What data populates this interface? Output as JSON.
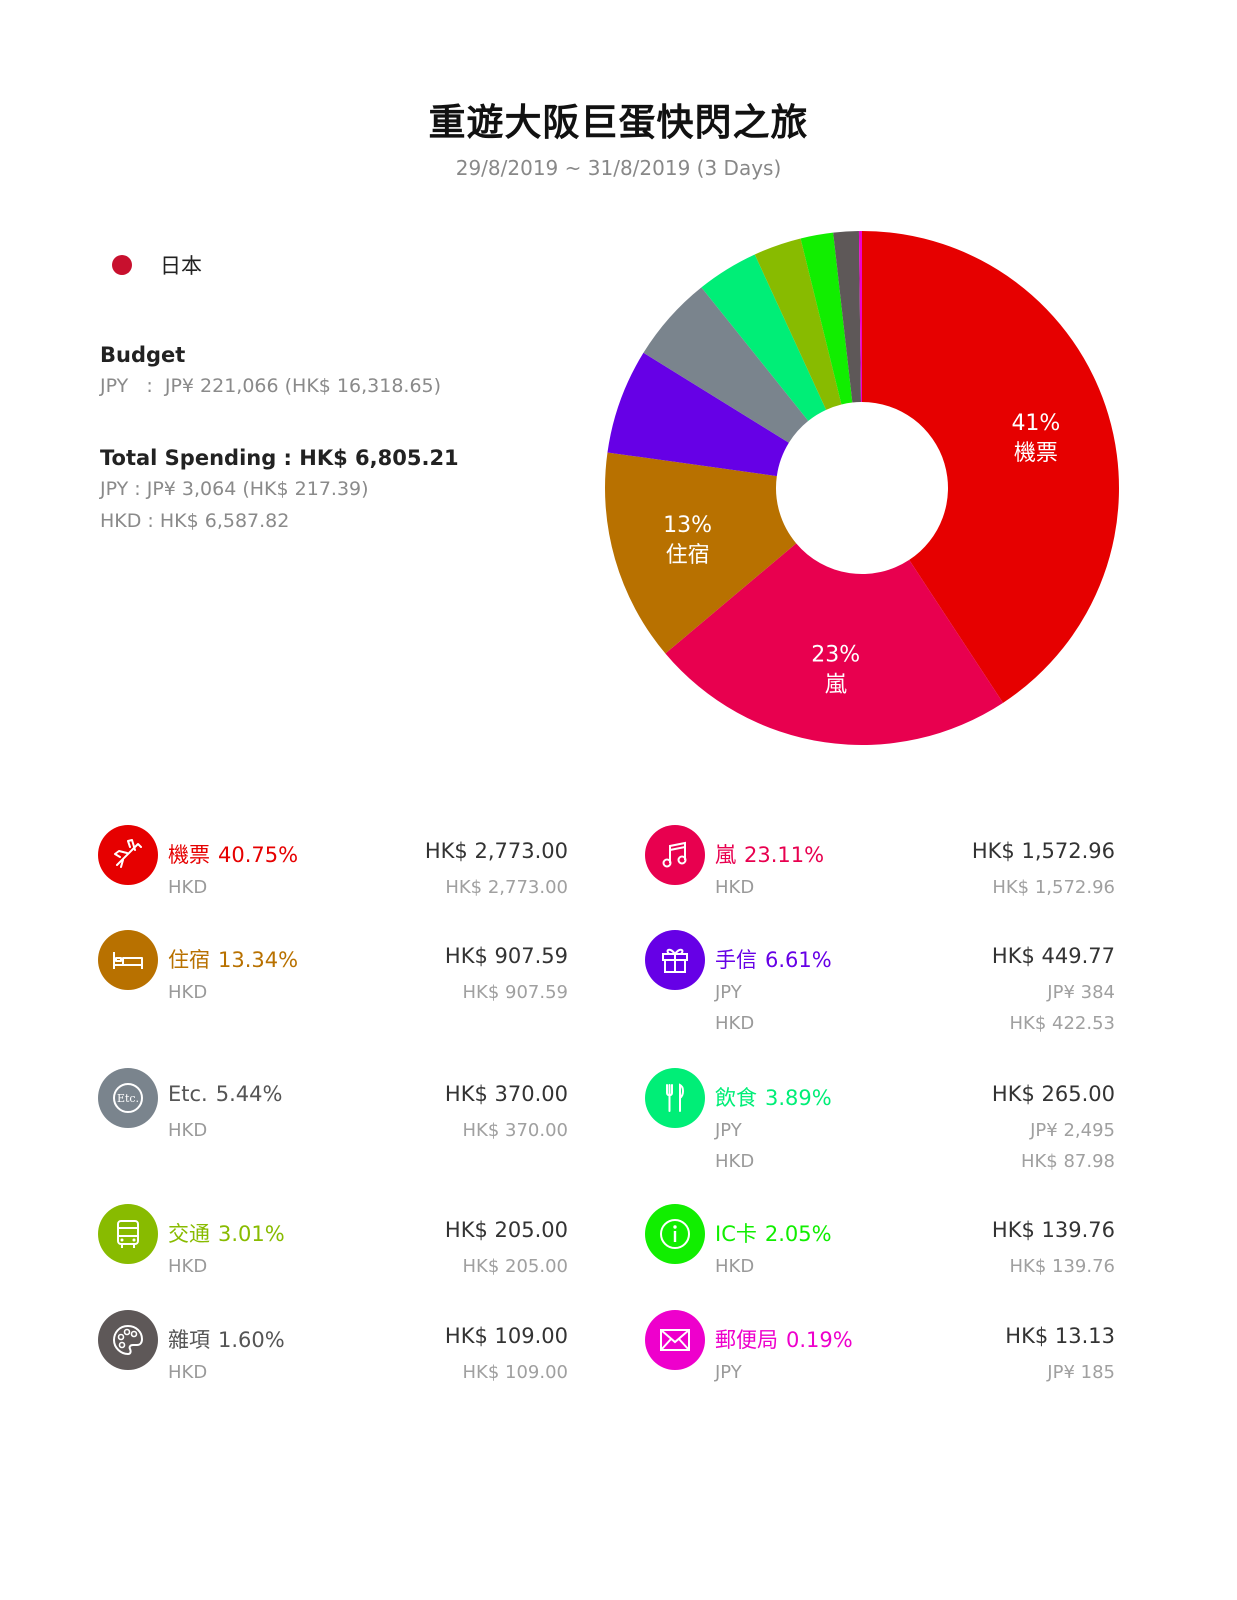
{
  "title": "重遊大阪巨蛋快閃之旅",
  "subtitle": "29/8/2019 ~ 31/8/2019 (3 Days)",
  "country": {
    "name": "日本",
    "color": "#c8102e"
  },
  "budget": {
    "label": "Budget",
    "line": "JPY   :  JP¥ 221,066 (HK$ 16,318.65)"
  },
  "spending": {
    "label": "Total Spending : HK$ 6,805.21",
    "lines": [
      "JPY : JP¥ 3,064 (HK$ 217.39)",
      "HKD : HK$ 6,587.82"
    ]
  },
  "chart_data": {
    "type": "pie",
    "donut": true,
    "slices": [
      {
        "label": "機票",
        "value": 40.75,
        "color": "#e60000",
        "display": "41%"
      },
      {
        "label": "嵐",
        "value": 23.11,
        "color": "#e8004f",
        "display": "23%"
      },
      {
        "label": "住宿",
        "value": 13.34,
        "color": "#b87100",
        "display": "13%"
      },
      {
        "label": "手信",
        "value": 6.61,
        "color": "#6600e6"
      },
      {
        "label": "Etc.",
        "value": 5.44,
        "color": "#7a848d"
      },
      {
        "label": "飲食",
        "value": 3.89,
        "color": "#00ee77"
      },
      {
        "label": "交通",
        "value": 3.01,
        "color": "#88bb00"
      },
      {
        "label": "IC卡",
        "value": 2.05,
        "color": "#11ee00"
      },
      {
        "label": "雜項",
        "value": 1.6,
        "color": "#5e5858"
      },
      {
        "label": "郵便局",
        "value": 0.19,
        "color": "#ee00cc"
      }
    ]
  },
  "categories": [
    {
      "name": "機票",
      "pct": "40.75%",
      "color": "#e60000",
      "icon": "plane-icon",
      "total": "HK$ 2,773.00",
      "rows": [
        {
          "cur": "HKD",
          "amt": "HK$ 2,773.00"
        }
      ]
    },
    {
      "name": "嵐",
      "pct": "23.11%",
      "color": "#e8004f",
      "icon": "music-icon",
      "total": "HK$ 1,572.96",
      "rows": [
        {
          "cur": "HKD",
          "amt": "HK$ 1,572.96"
        }
      ]
    },
    {
      "name": "住宿",
      "pct": "13.34%",
      "color": "#b87100",
      "icon": "bed-icon",
      "total": "HK$ 907.59",
      "rows": [
        {
          "cur": "HKD",
          "amt": "HK$ 907.59"
        }
      ]
    },
    {
      "name": "手信",
      "pct": "6.61%",
      "color": "#6600e6",
      "icon": "gift-icon",
      "total": "HK$ 449.77",
      "rows": [
        {
          "cur": "JPY",
          "amt": "JP¥ 384"
        },
        {
          "cur": "HKD",
          "amt": "HK$ 422.53"
        }
      ]
    },
    {
      "name": "Etc.",
      "pct": "5.44%",
      "color": "#7a848d",
      "icon": "etc-icon",
      "total": "HK$ 370.00",
      "rows": [
        {
          "cur": "HKD",
          "amt": "HK$ 370.00"
        }
      ]
    },
    {
      "name": "飲食",
      "pct": "3.89%",
      "color": "#00ee77",
      "icon": "cutlery-icon",
      "total": "HK$ 265.00",
      "rows": [
        {
          "cur": "JPY",
          "amt": "JP¥ 2,495"
        },
        {
          "cur": "HKD",
          "amt": "HK$ 87.98"
        }
      ]
    },
    {
      "name": "交通",
      "pct": "3.01%",
      "color": "#88bb00",
      "icon": "bus-icon",
      "total": "HK$ 205.00",
      "rows": [
        {
          "cur": "HKD",
          "amt": "HK$ 205.00"
        }
      ]
    },
    {
      "name": "IC卡",
      "pct": "2.05%",
      "color": "#11ee00",
      "icon": "info-icon",
      "total": "HK$ 139.76",
      "rows": [
        {
          "cur": "HKD",
          "amt": "HK$ 139.76"
        }
      ]
    },
    {
      "name": "雜項",
      "pct": "1.60%",
      "color": "#5e5858",
      "icon": "palette-icon",
      "total": "HK$ 109.00",
      "rows": [
        {
          "cur": "HKD",
          "amt": "HK$ 109.00"
        }
      ]
    },
    {
      "name": "郵便局",
      "pct": "0.19%",
      "color": "#ee00cc",
      "icon": "envelope-icon",
      "total": "HK$ 13.13",
      "rows": [
        {
          "cur": "JPY",
          "amt": "JP¥ 185"
        }
      ]
    }
  ]
}
